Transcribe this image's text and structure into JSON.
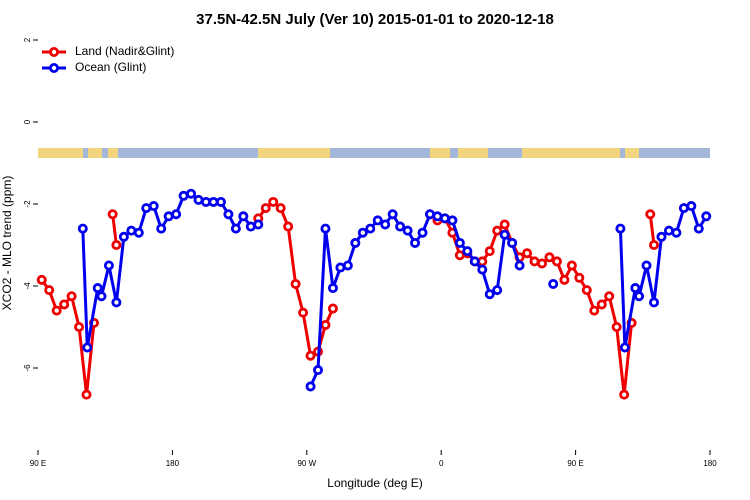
{
  "chart_data": {
    "type": "line",
    "title": "37.5N-42.5N July (Ver 10)   2015-01-01 to 2020-12-18",
    "xlabel": "Longitude (deg E)",
    "ylabel": "XCO2 - MLO trend (ppm)",
    "xlim": [
      90,
      540
    ],
    "ylim": [
      -8,
      2.1
    ],
    "xticks": [
      {
        "value": 90,
        "label": "90 E"
      },
      180,
      {
        "value": 270,
        "label": "90 W"
      },
      {
        "value": 360,
        "label": "0"
      },
      {
        "value": 450,
        "label": "90 E"
      },
      {
        "value": 540,
        "label": "180"
      }
    ],
    "yticks": [
      -6,
      -4,
      -2,
      0,
      2
    ],
    "legend": "top-left",
    "series": [
      {
        "name": "Land (Nadir&Glint)",
        "color": "#ee0000",
        "x": [
          92.5,
          97.5,
          102.5,
          107.5,
          112.5,
          117.5,
          122.5,
          127.5,
          132.5,
          140,
          142.5,
          190,
          237.5,
          242.5,
          247.5,
          252.5,
          257.5,
          262.5,
          267.5,
          272.5,
          277.5,
          282.5,
          287.5,
          320,
          352.5,
          357.5,
          362.5,
          367.5,
          372.5,
          377.5,
          382.5,
          387.5,
          392.5,
          397.5,
          402.5,
          407.5,
          412.5,
          417.5,
          422.5,
          427.5,
          432.5,
          437.5,
          442.5,
          447.5,
          452.5,
          457.5,
          462.5,
          467.5,
          472.5,
          477.5,
          482.5,
          487.5,
          492.5,
          500,
          502.5
        ],
        "values": [
          -3.85,
          -4.1,
          -4.6,
          -4.45,
          -4.25,
          -5.0,
          -6.65,
          -4.9,
          null,
          -2.25,
          -3.0,
          null,
          -2.35,
          -2.1,
          -1.95,
          -2.1,
          -2.55,
          -3.95,
          -4.65,
          -5.7,
          -5.6,
          -4.95,
          -4.55,
          null,
          -2.25,
          -2.4,
          -2.35,
          -2.7,
          -3.25,
          -3.2,
          -3.4,
          -3.4,
          -3.15,
          -2.65,
          -2.5,
          -2.95,
          -3.3,
          -3.2,
          -3.4,
          -3.45,
          -3.3,
          -3.4,
          -3.85,
          -3.5,
          -3.8,
          -4.1,
          -4.6,
          -4.45,
          -4.25,
          -5.0,
          -6.65,
          -4.9,
          null,
          -2.25,
          -3.0
        ]
      },
      {
        "name": "Ocean (Glint)",
        "color": "#0000ee",
        "x": [
          120,
          123,
          130,
          132.5,
          137.5,
          142.5,
          147.5,
          152.5,
          157.5,
          162.5,
          167.5,
          172.5,
          177.5,
          182.5,
          187.5,
          192.5,
          197.5,
          202.5,
          207.5,
          212.5,
          217.5,
          222.5,
          227.5,
          232.5,
          237.5,
          255,
          272.5,
          277.5,
          282.5,
          287.5,
          292.5,
          297.5,
          302.5,
          307.5,
          312.5,
          317.5,
          322.5,
          327.5,
          332.5,
          337.5,
          342.5,
          347.5,
          352.5,
          357.5,
          362.5,
          367.5,
          372.5,
          377.5,
          382.5,
          387.5,
          392.5,
          397.5,
          402.5,
          407.5,
          412.5,
          425,
          435,
          460,
          480,
          483,
          490,
          492.5,
          497.5,
          502.5,
          507.5,
          512.5,
          517.5,
          522.5,
          527.5,
          532.5,
          537.5
        ],
        "values": [
          -2.6,
          -5.5,
          -4.05,
          -4.25,
          -3.5,
          -4.4,
          -2.8,
          -2.65,
          -2.7,
          -2.1,
          -2.05,
          -2.6,
          -2.3,
          -2.25,
          -1.8,
          -1.75,
          -1.9,
          -1.95,
          -1.95,
          -1.95,
          -2.25,
          -2.6,
          -2.3,
          -2.55,
          -2.5,
          null,
          -6.45,
          -6.05,
          -2.6,
          -4.05,
          -3.55,
          -3.5,
          -2.95,
          -2.7,
          -2.6,
          -2.4,
          -2.5,
          -2.25,
          -2.55,
          -2.65,
          -2.95,
          -2.7,
          -2.25,
          -2.3,
          -2.35,
          -2.4,
          -2.95,
          -3.15,
          -3.4,
          -3.6,
          -4.2,
          -4.1,
          -2.75,
          -2.95,
          -3.5,
          null,
          -3.95,
          null,
          -2.6,
          -5.5,
          -4.05,
          -4.25,
          -3.5,
          -4.4,
          -2.8,
          -2.65,
          -2.7,
          -2.1,
          -2.05,
          -2.6,
          -2.3
        ]
      }
    ]
  }
}
